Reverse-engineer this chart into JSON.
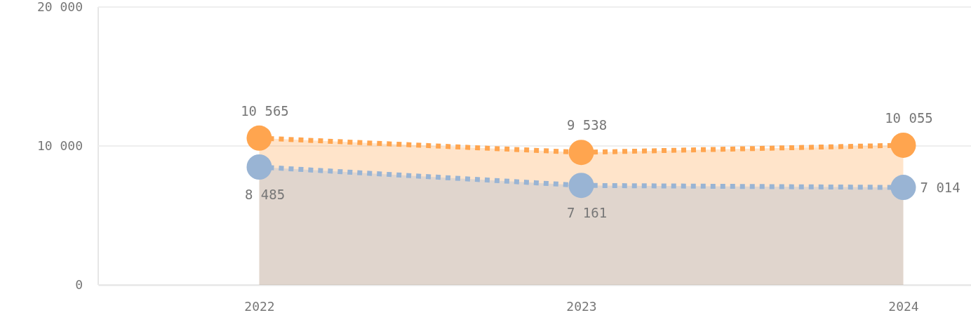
{
  "chart_data": {
    "type": "area",
    "categories": [
      "2022",
      "2023",
      "2024"
    ],
    "series": [
      {
        "color": "#ffa54f",
        "values": [
          10565,
          9538,
          10055
        ]
      },
      {
        "color": "#99b4d4",
        "values": [
          8485,
          7161,
          7014
        ]
      }
    ],
    "ylim": [
      0,
      20000
    ],
    "yticks": [
      0,
      {
        "value": 10000,
        "label": "10 000"
      },
      {
        "value": 20000,
        "label": "20 000"
      }
    ],
    "grid": "y",
    "marker": "circle",
    "line_style": "dotted",
    "data_labels": true
  }
}
